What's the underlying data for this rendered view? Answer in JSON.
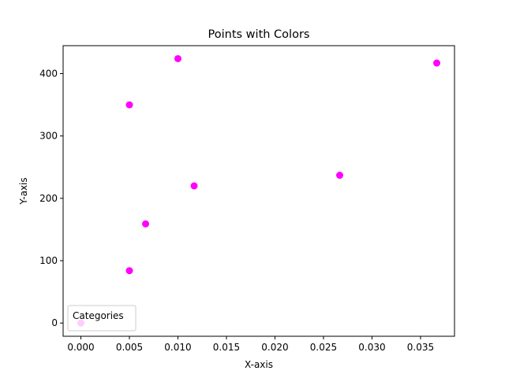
{
  "chart_data": {
    "type": "scatter",
    "title": "Points with Colors",
    "xlabel": "X-axis",
    "ylabel": "Y-axis",
    "xlim": [
      -0.00183,
      0.0385
    ],
    "ylim": [
      -21.2,
      444.8
    ],
    "xticks": [
      0.0,
      0.005,
      0.01,
      0.015,
      0.02,
      0.025,
      0.03,
      0.035
    ],
    "xtick_labels": [
      "0.000",
      "0.005",
      "0.010",
      "0.015",
      "0.020",
      "0.025",
      "0.030",
      "0.035"
    ],
    "yticks": [
      0,
      100,
      200,
      300,
      400
    ],
    "ytick_labels": [
      "0",
      "100",
      "200",
      "300",
      "400"
    ],
    "grid": false,
    "legend": {
      "title": "Categories",
      "placement": "lower-left"
    },
    "series": [
      {
        "color": "#ff00ff",
        "x": [
          0.0,
          0.005,
          0.005,
          0.00667,
          0.01,
          0.01167,
          0.02667,
          0.03667
        ],
        "y": [
          0,
          84,
          350,
          159,
          424,
          220,
          237,
          417
        ]
      }
    ]
  }
}
